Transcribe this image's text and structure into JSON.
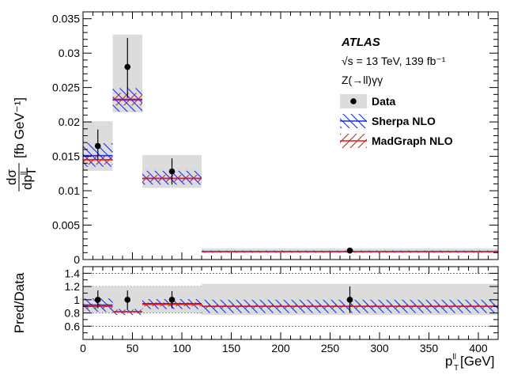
{
  "chart_data": {
    "type": "bar",
    "title": "",
    "experiment": "ATLAS",
    "energy_text": "√s = 13 TeV, 139 fb⁻¹",
    "process": "Z(→ll)γγ",
    "xlabel": "p_T^ll [GeV]",
    "xlabel_main": "p",
    "xlabel_sub": "T",
    "xlabel_sup": "ll",
    "xlabel_unit": " [GeV]",
    "ylabel_top": "Pred/Data",
    "ylabel_main_num": "dσ",
    "ylabel_main_den": "dp",
    "ylabel_main_den_sub": "T",
    "ylabel_main_den_sup": "ll",
    "ylabel_main_unit": "[fb GeV⁻¹]",
    "xlim": [
      0,
      420
    ],
    "ylim_main": [
      0,
      0.036
    ],
    "ylim_ratio": [
      0.4,
      1.5
    ],
    "x_ticks": [
      0,
      50,
      100,
      150,
      200,
      250,
      300,
      350,
      400
    ],
    "x_tick_labels": [
      "0",
      "50",
      "100",
      "150",
      "200",
      "250",
      "300",
      "350",
      "400"
    ],
    "y_ticks_main": [
      0,
      0.005,
      0.01,
      0.015,
      0.02,
      0.025,
      0.03,
      0.035
    ],
    "y_tick_labels_main": [
      "0",
      "0.005",
      "0.01",
      "0.015",
      "0.02",
      "0.025",
      "0.03",
      "0.035"
    ],
    "y_ticks_ratio": [
      0.6,
      0.8,
      1.0,
      1.2,
      1.4
    ],
    "y_tick_labels_ratio": [
      "0.6",
      "0.8",
      "1",
      "1.2",
      "1.4"
    ],
    "bins": [
      [
        0,
        30
      ],
      [
        30,
        60
      ],
      [
        60,
        120
      ],
      [
        120,
        420
      ]
    ],
    "legend": [
      {
        "label": "Data",
        "style": "data"
      },
      {
        "label": "Sherpa NLO",
        "style": "sherpa"
      },
      {
        "label": "MadGraph NLO",
        "style": "madgraph"
      }
    ],
    "data": {
      "name": "Data",
      "x": [
        15,
        45,
        90,
        270
      ],
      "values": [
        0.0165,
        0.028,
        0.0128,
        0.0013
      ],
      "err_low": [
        0.0145,
        0.0235,
        0.0109,
        0.001
      ],
      "err_high": [
        0.0189,
        0.0322,
        0.0147,
        0.0016
      ],
      "band_low": [
        0.0129,
        0.0214,
        0.0104,
        0.001
      ],
      "band_high": [
        0.0201,
        0.0327,
        0.0152,
        0.0016
      ]
    },
    "series": [
      {
        "name": "Sherpa NLO",
        "values": [
          0.0151,
          0.0232,
          0.0118,
          0.00115
        ],
        "low": [
          0.0135,
          0.0215,
          0.0109,
          0.001
        ],
        "high": [
          0.0169,
          0.0249,
          0.0129,
          0.0013
        ]
      },
      {
        "name": "MadGraph NLO",
        "values": [
          0.0145,
          0.0233,
          0.0118,
          0.00115
        ],
        "low": [
          0.0138,
          0.0224,
          0.0113,
          0.0011
        ],
        "high": [
          0.0152,
          0.0242,
          0.0123,
          0.0012
        ]
      }
    ],
    "ratio": {
      "data": {
        "values": [
          1.0,
          1.0,
          1.0,
          1.0
        ],
        "err_low": [
          0.87,
          0.86,
          0.87,
          0.8
        ],
        "err_high": [
          1.14,
          1.14,
          1.13,
          1.2
        ],
        "band_low": [
          0.8,
          0.8,
          0.8,
          0.77
        ],
        "band_high": [
          1.2,
          1.2,
          1.2,
          1.24
        ]
      },
      "sherpa": {
        "values": [
          0.92,
          0.82,
          0.94,
          0.9
        ],
        "low": [
          0.82,
          0.77,
          0.86,
          0.8
        ],
        "high": [
          1.02,
          0.86,
          1.01,
          1.0
        ]
      },
      "madgraph": {
        "values": [
          0.9,
          0.82,
          0.93,
          0.9
        ],
        "low": [
          0.86,
          0.8,
          0.9,
          0.87
        ],
        "high": [
          0.94,
          0.85,
          0.96,
          0.93
        ]
      }
    },
    "colors": {
      "band": "#dcdcdc",
      "sherpa": "#1c2fd6",
      "madgraph": "#e21b1b",
      "data": "#000000"
    }
  }
}
